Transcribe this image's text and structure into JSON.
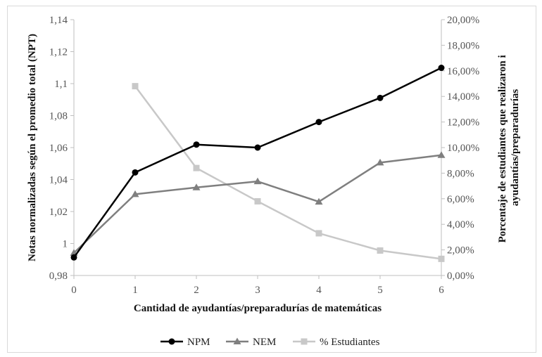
{
  "chart_data": {
    "type": "line",
    "x": [
      0,
      1,
      2,
      3,
      4,
      5,
      6
    ],
    "xlabel": "Cantidad de ayudantías/preparadurías  de matemáticas",
    "ylabel": "Notas normalizadas  según el promedio total (NPT)",
    "y2label_lines": [
      "Porcentaje de estudiantes que realizaron i",
      "ayudantías/preparadurías"
    ],
    "ylim": [
      0.98,
      1.15
    ],
    "yticks": [
      "0,98",
      "1",
      "1,02",
      "1,04",
      "1,06",
      "1,08",
      "1,1",
      "1,12",
      "1,14"
    ],
    "y2lim": [
      0,
      20
    ],
    "y2ticks": [
      "0,00%",
      "2,00%",
      "4,00%",
      "6,00%",
      "8,00%",
      "10,00%",
      "12,00%",
      "14,00%",
      "16,00%",
      "18,00%",
      "20,00%"
    ],
    "grid": false,
    "legend_position": "bottom",
    "series": [
      {
        "name": "NPM",
        "axis": "left",
        "marker": "circle",
        "color": "#000000",
        "values": [
          0.992,
          1.0485,
          1.067,
          1.065,
          1.082,
          1.098,
          1.118
        ]
      },
      {
        "name": "NEM",
        "axis": "left",
        "marker": "triangle",
        "color": "#7f7f7f",
        "values": [
          0.995,
          1.034,
          1.0385,
          1.0425,
          1.029,
          1.055,
          1.06
        ]
      },
      {
        "name": "% Estudiantes",
        "axis": "right",
        "marker": "square",
        "color": "#c8c8c8",
        "values": [
          null,
          14.8,
          8.4,
          5.8,
          3.3,
          1.95,
          1.3
        ]
      }
    ]
  }
}
